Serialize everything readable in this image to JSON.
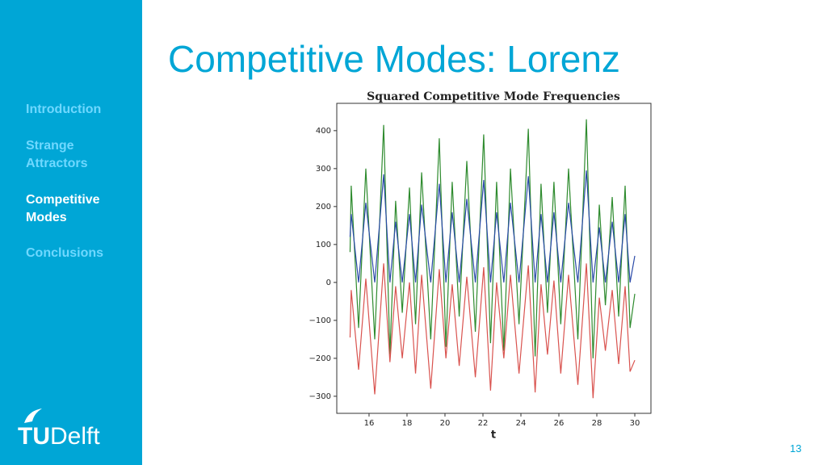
{
  "sidebar": {
    "nav": [
      "Introduction",
      "Strange Attractors",
      "Competitive Modes",
      "Conclusions"
    ],
    "active": 2
  },
  "logo": {
    "tu": "TU",
    "delft": "Delft"
  },
  "slide_title": "Competitive Modes: Lorenz",
  "page_number": "13",
  "chart_data": {
    "type": "line",
    "title": "Squared Competitive Mode Frequencies",
    "x_label": "t",
    "x": [
      15.0,
      15.06,
      15.45,
      15.83,
      16.3,
      16.77,
      17.1,
      17.4,
      17.75,
      18.13,
      18.45,
      18.77,
      19.25,
      19.7,
      20.05,
      20.38,
      20.75,
      21.15,
      21.6,
      22.04,
      22.4,
      22.72,
      23.1,
      23.45,
      23.9,
      24.39,
      24.75,
      25.06,
      25.4,
      25.74,
      26.1,
      26.51,
      27.0,
      27.45,
      27.8,
      28.13,
      28.45,
      28.81,
      29.15,
      29.49,
      29.75,
      30.0
    ],
    "series": [
      {
        "color": "#2e8b2e",
        "values": [
          80,
          255,
          -120,
          300,
          -150,
          415,
          -190,
          215,
          -80,
          250,
          -110,
          290,
          -150,
          380,
          -170,
          265,
          -90,
          320,
          -130,
          390,
          -160,
          265,
          -180,
          300,
          -110,
          405,
          -195,
          260,
          -80,
          265,
          -110,
          300,
          -150,
          430,
          -200,
          205,
          -60,
          225,
          -90,
          255,
          -120,
          -30
        ]
      },
      {
        "color": "#d9534f",
        "values": [
          -145,
          -20,
          -230,
          10,
          -295,
          50,
          -210,
          -10,
          -200,
          0,
          -240,
          20,
          -280,
          35,
          -200,
          -5,
          -220,
          15,
          -250,
          40,
          -285,
          0,
          -200,
          20,
          -240,
          45,
          -290,
          -5,
          -190,
          5,
          -240,
          20,
          -270,
          50,
          -305,
          -40,
          -180,
          -20,
          -215,
          -10,
          -235,
          -205
        ]
      },
      {
        "color": "#2a4aa8",
        "values": [
          120,
          180,
          0,
          210,
          0,
          285,
          0,
          160,
          0,
          180,
          0,
          205,
          0,
          260,
          0,
          185,
          0,
          220,
          0,
          270,
          0,
          185,
          0,
          210,
          0,
          280,
          0,
          180,
          0,
          185,
          0,
          210,
          0,
          295,
          0,
          145,
          0,
          160,
          0,
          180,
          0,
          70
        ]
      }
    ],
    "xlim": [
      14.3,
      30.85
    ],
    "ylim": [
      -345,
      472
    ],
    "xticks": [
      16,
      18,
      20,
      22,
      24,
      26,
      28,
      30
    ],
    "yticks": [
      {
        "value": -300,
        "label": "−300"
      },
      {
        "value": -200,
        "label": "−200"
      },
      {
        "value": -100,
        "label": "−100"
      },
      0,
      100,
      200,
      300,
      400
    ],
    "grid": false
  }
}
